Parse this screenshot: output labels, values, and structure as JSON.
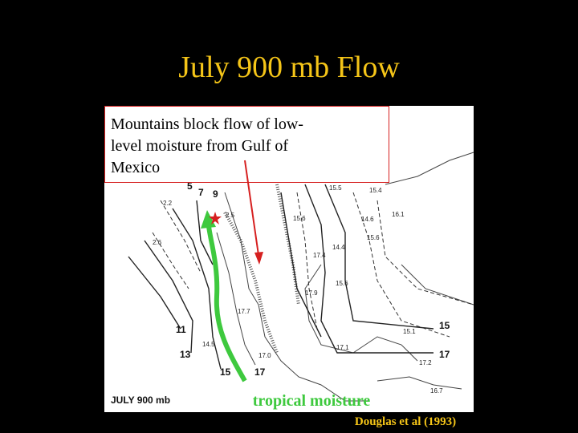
{
  "header": {
    "title": "July 900 mb Flow"
  },
  "callout": {
    "lines": [
      "Mountains block flow of low-",
      "level moisture from Gulf of",
      "Mexico"
    ]
  },
  "map": {
    "caption": "JULY 900 mb",
    "labels": [
      "5",
      "7",
      "9",
      "2.2",
      "2.5",
      "2.6",
      "15.5",
      "15.4",
      "16.1",
      "15.6",
      "14.6",
      "15.6",
      "14.4",
      "17.4",
      "17.9",
      "15.6",
      "17.7",
      "17.0",
      "14.5",
      "11",
      "13",
      "15",
      "17",
      "15.1",
      "15",
      "17",
      "17.1",
      "17.2",
      "16.7"
    ]
  },
  "annotation": "tropical moisture",
  "citation": "Douglas et al (1993)"
}
